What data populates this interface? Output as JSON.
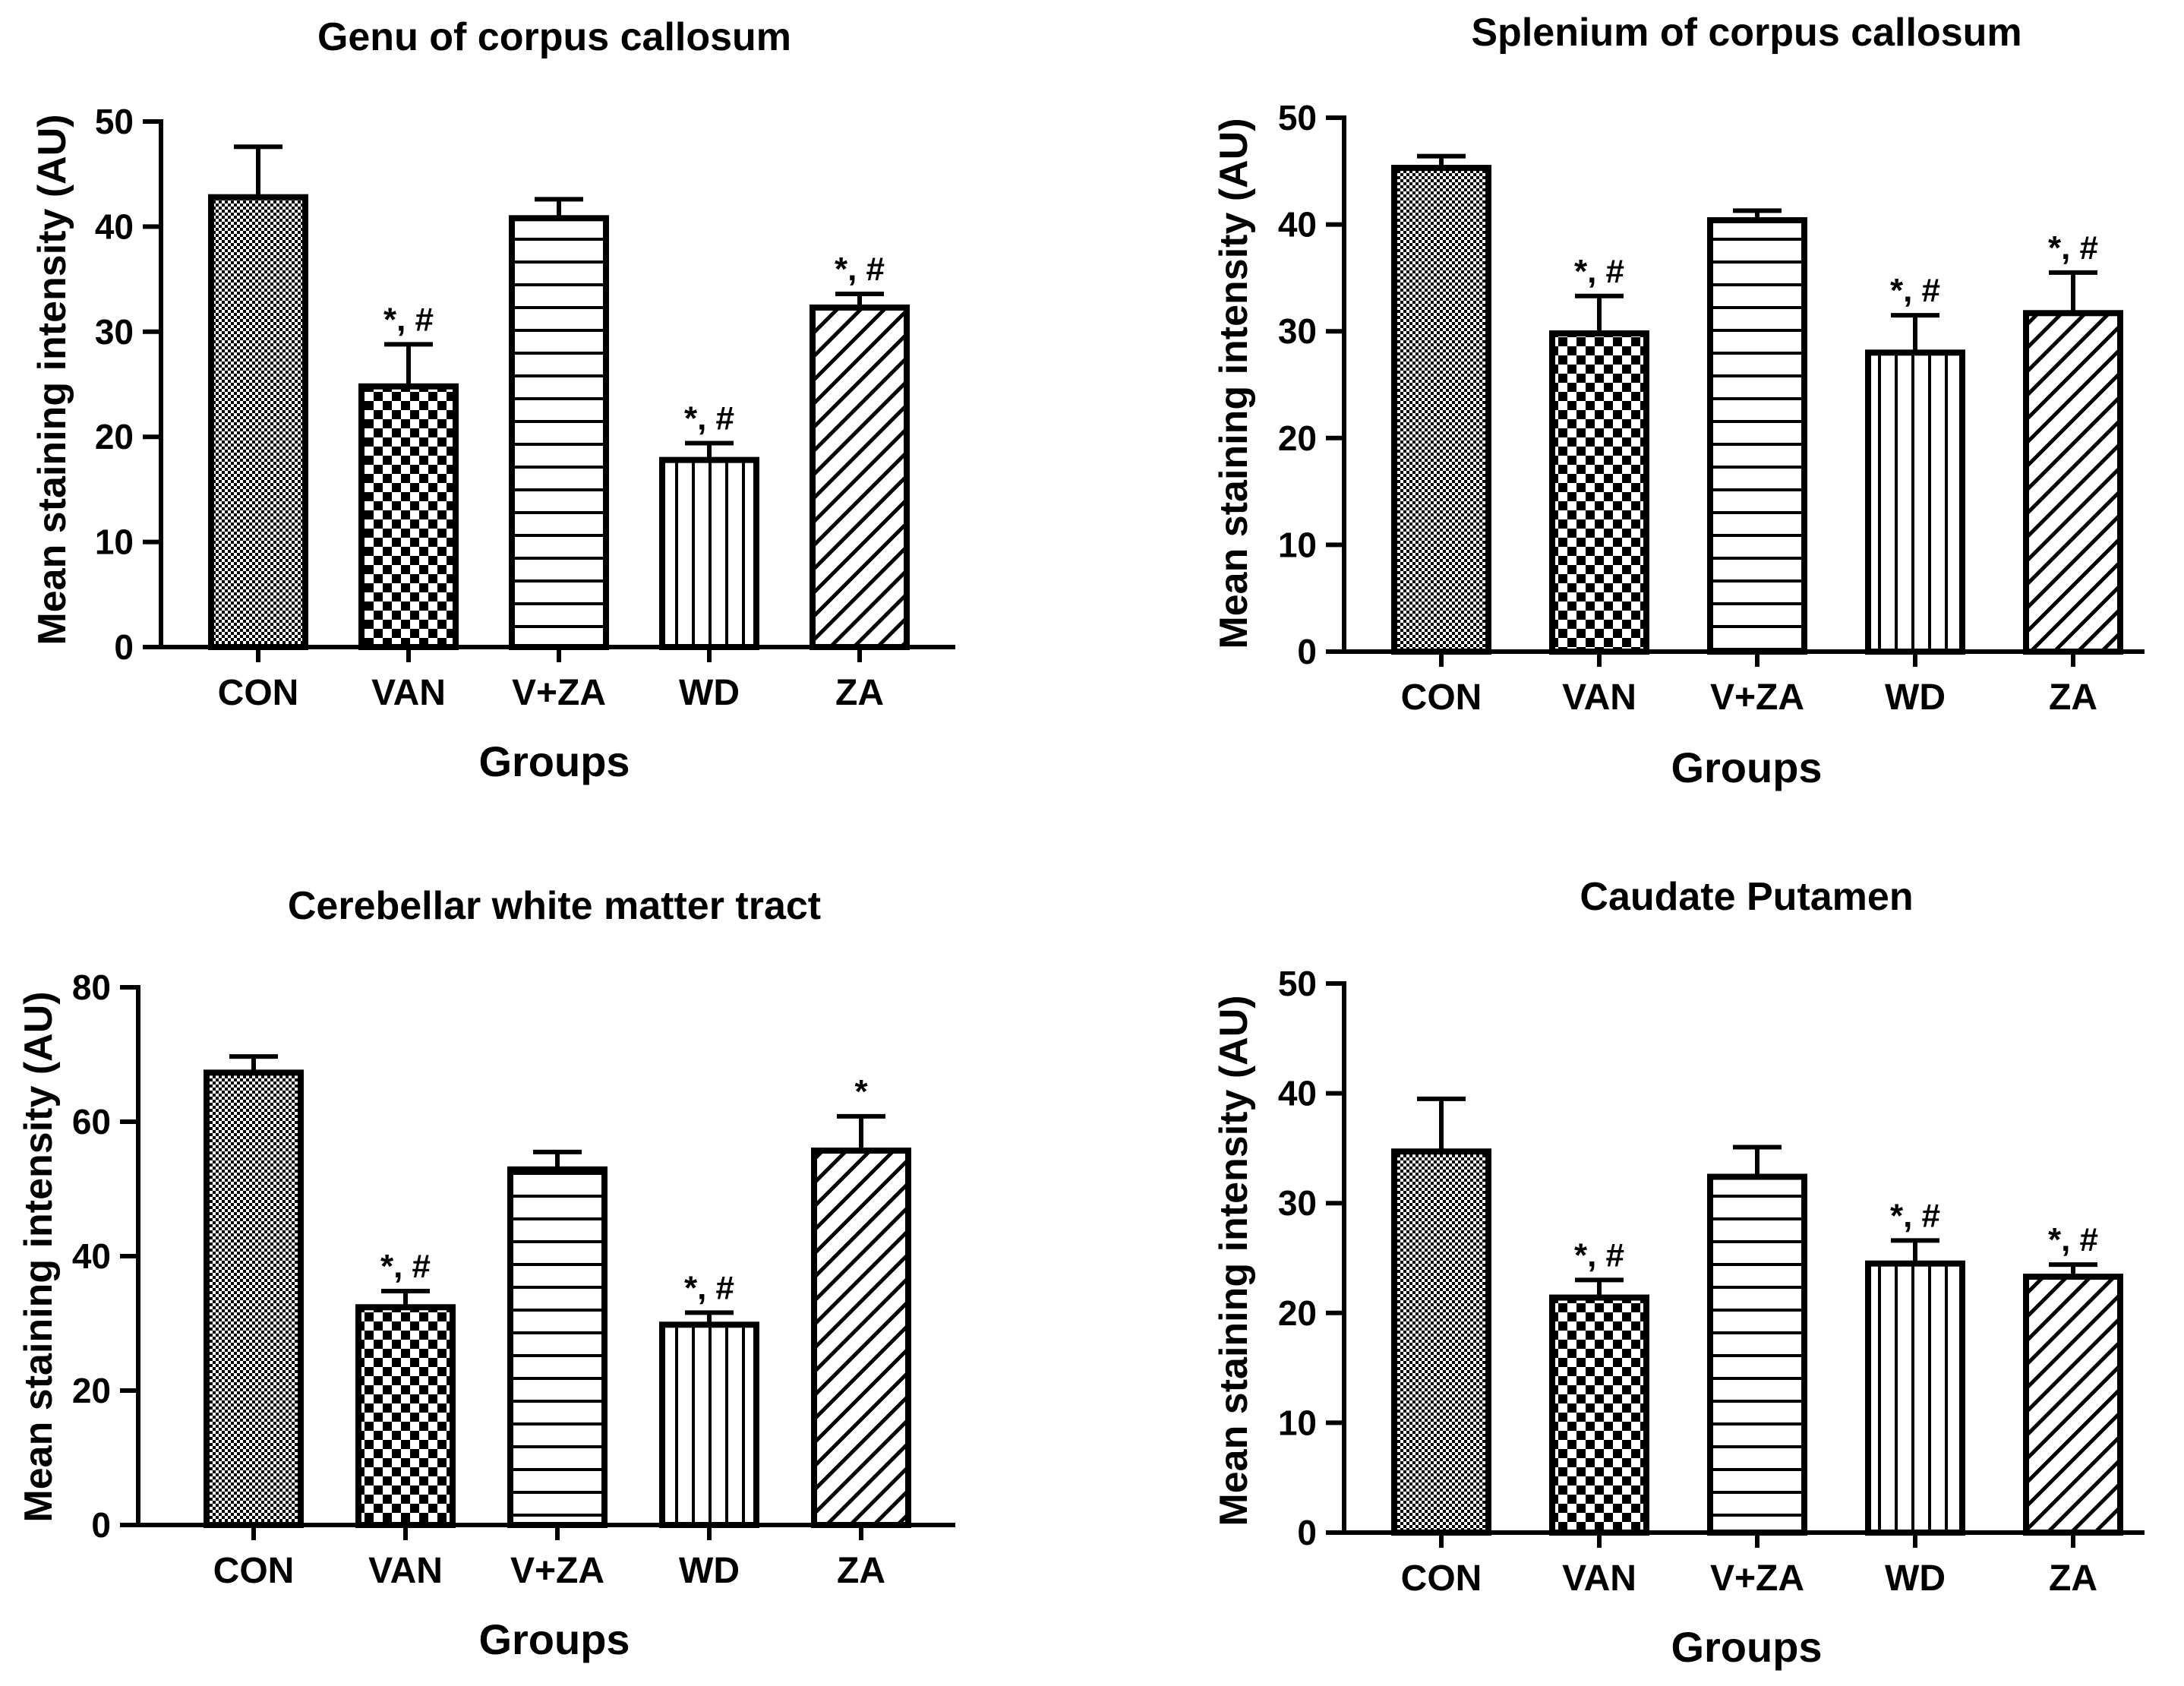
{
  "colors": {
    "ink": "#000000",
    "background": "#ffffff"
  },
  "chart_data": [
    {
      "type": "bar",
      "title": "Genu of corpus callosum",
      "xlabel": "Groups",
      "ylabel": "Mean staining intensity (AU)",
      "ylim": [
        0,
        50
      ],
      "yticks": [
        "0",
        "10",
        "20",
        "30",
        "40",
        "50"
      ],
      "categories": [
        "CON",
        "VAN",
        "V+ZA",
        "WD",
        "ZA"
      ],
      "patterns": [
        "fine-dots",
        "checker",
        "horizontal-lines",
        "vertical-lines",
        "diagonal-lines"
      ],
      "values": [
        42.8,
        24.8,
        40.8,
        17.8,
        32.3
      ],
      "errors": [
        4.8,
        4.0,
        1.8,
        1.6,
        1.3
      ],
      "annotations": [
        "",
        "*, #",
        "",
        "*, #",
        "*, #"
      ]
    },
    {
      "type": "bar",
      "title": "Splenium of corpus callosum",
      "xlabel": "Groups",
      "ylabel": "Mean staining intensity (AU)",
      "ylim": [
        0,
        50
      ],
      "yticks": [
        "0",
        "10",
        "20",
        "30",
        "40",
        "50"
      ],
      "categories": [
        "CON",
        "VAN",
        "V+ZA",
        "WD",
        "ZA"
      ],
      "patterns": [
        "fine-dots",
        "checker",
        "horizontal-lines",
        "vertical-lines",
        "diagonal-lines"
      ],
      "values": [
        45.3,
        29.8,
        40.4,
        28.0,
        31.7
      ],
      "errors": [
        1.1,
        3.5,
        0.9,
        3.5,
        3.8
      ],
      "annotations": [
        "",
        "*, #",
        "",
        "*, #",
        "*, #"
      ]
    },
    {
      "type": "bar",
      "title": "Cerebellar white matter tract",
      "xlabel": "Groups",
      "ylabel": "Mean staining intensity (AU)",
      "ylim": [
        0,
        80
      ],
      "yticks": [
        "0",
        "20",
        "40",
        "60",
        "80"
      ],
      "categories": [
        "CON",
        "VAN",
        "V+ZA",
        "WD",
        "ZA"
      ],
      "patterns": [
        "fine-dots",
        "checker",
        "horizontal-lines",
        "vertical-lines",
        "diagonal-lines"
      ],
      "values": [
        67.3,
        32.4,
        52.9,
        29.8,
        55.7
      ],
      "errors": [
        2.4,
        2.4,
        2.6,
        1.8,
        5.1
      ],
      "annotations": [
        "",
        "*, #",
        "",
        "*, #",
        "*"
      ]
    },
    {
      "type": "bar",
      "title": "Caudate Putamen",
      "xlabel": "Groups",
      "ylabel": "Mean staining intensity (AU)",
      "ylim": [
        0,
        50
      ],
      "yticks": [
        "0",
        "10",
        "20",
        "30",
        "40",
        "50"
      ],
      "categories": [
        "CON",
        "VAN",
        "V+ZA",
        "WD",
        "ZA"
      ],
      "patterns": [
        "fine-dots",
        "checker",
        "horizontal-lines",
        "vertical-lines",
        "diagonal-lines"
      ],
      "values": [
        34.7,
        21.4,
        32.4,
        24.5,
        23.3
      ],
      "errors": [
        4.8,
        1.6,
        2.7,
        2.1,
        1.1
      ],
      "annotations": [
        "",
        "*, #",
        "",
        "*, #",
        "*, #"
      ]
    }
  ]
}
